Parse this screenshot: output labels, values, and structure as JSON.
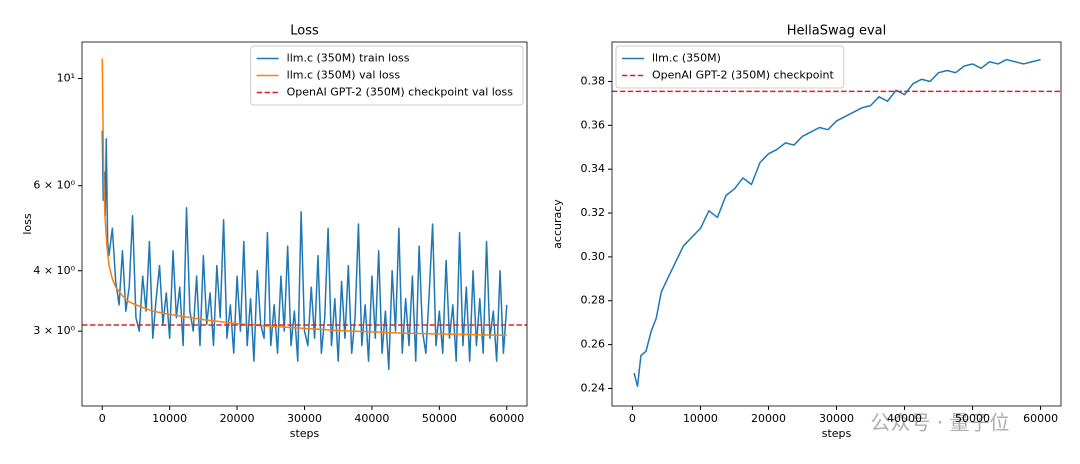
{
  "chart_data": [
    {
      "type": "line",
      "title": "Loss",
      "xlabel": "steps",
      "ylabel": "loss",
      "yscale": "log",
      "xlim": [
        -3000,
        63000
      ],
      "xticks": [
        0,
        10000,
        20000,
        30000,
        40000,
        50000,
        60000
      ],
      "ylim": [
        2.1,
        11.9
      ],
      "yticks": [
        {
          "value": 3,
          "label": "3 × 10⁰"
        },
        {
          "value": 4,
          "label": "4 × 10⁰"
        },
        {
          "value": 6,
          "label": "6 × 10⁰"
        },
        {
          "value": 10,
          "label": "10¹"
        }
      ],
      "legend": "upper right",
      "series": [
        {
          "name": "llm.c (350M) train loss",
          "color": "#1f77b4",
          "x": [
            0,
            150,
            300,
            450,
            600,
            800,
            1000,
            1500,
            2000,
            2500,
            3000,
            3500,
            4000,
            4500,
            5000,
            5500,
            6000,
            6500,
            7000,
            7500,
            8000,
            8500,
            9000,
            9500,
            10000,
            10500,
            11000,
            11500,
            12000,
            12500,
            13000,
            13500,
            14000,
            14500,
            15000,
            15500,
            16000,
            16500,
            17000,
            17500,
            18000,
            18500,
            19000,
            19500,
            20000,
            20500,
            21000,
            21500,
            22000,
            22500,
            23000,
            23500,
            24000,
            24500,
            25000,
            25500,
            26000,
            26500,
            27000,
            27500,
            28000,
            28500,
            29000,
            29500,
            30000,
            30500,
            31000,
            31500,
            32000,
            32500,
            33000,
            33500,
            34000,
            34500,
            35000,
            35500,
            36000,
            36500,
            37000,
            37500,
            38000,
            38500,
            39000,
            39500,
            40000,
            40500,
            41000,
            41500,
            42000,
            42500,
            43000,
            43500,
            44000,
            44500,
            45000,
            45500,
            46000,
            46500,
            47000,
            47500,
            48000,
            48500,
            49000,
            49500,
            50000,
            50500,
            51000,
            51500,
            52000,
            52500,
            53000,
            53500,
            54000,
            54500,
            55000,
            55500,
            56000,
            56500,
            57000,
            57500,
            58000,
            58500,
            59000,
            59500,
            60000
          ],
          "values": [
            7.8,
            5.6,
            6.4,
            5.2,
            7.5,
            4.6,
            4.3,
            4.9,
            3.8,
            3.4,
            4.4,
            3.3,
            3.7,
            5.2,
            3.2,
            3.0,
            3.9,
            3.3,
            4.6,
            2.9,
            3.5,
            4.1,
            3.1,
            3.6,
            2.9,
            4.4,
            3.2,
            3.7,
            2.8,
            5.4,
            3.3,
            3.0,
            3.9,
            2.8,
            4.3,
            3.1,
            3.6,
            2.8,
            4.1,
            3.2,
            5.1,
            2.9,
            3.4,
            2.7,
            3.9,
            3.0,
            4.6,
            2.8,
            3.5,
            2.6,
            4.0,
            3.1,
            2.9,
            4.8,
            2.8,
            3.4,
            2.7,
            3.9,
            3.0,
            4.5,
            2.8,
            3.3,
            2.6,
            5.3,
            3.0,
            2.8,
            3.7,
            2.9,
            4.3,
            2.7,
            3.2,
            4.9,
            2.8,
            3.5,
            2.6,
            3.8,
            2.9,
            4.1,
            2.7,
            3.2,
            5.0,
            2.8,
            3.4,
            2.6,
            3.9,
            2.9,
            4.4,
            2.7,
            3.3,
            2.5,
            4.0,
            3.0,
            4.9,
            2.7,
            3.5,
            2.8,
            3.9,
            2.6,
            4.5,
            3.0,
            2.7,
            3.6,
            5.0,
            2.8,
            3.3,
            2.7,
            4.2,
            2.9,
            3.4,
            2.6,
            4.8,
            2.8,
            3.7,
            2.6,
            4.0,
            2.8,
            3.5,
            2.7,
            4.6,
            2.9,
            3.3,
            2.6,
            4.0,
            2.7,
            3.4
          ]
        },
        {
          "name": "llm.c (350M) val loss",
          "color": "#ff7f0e",
          "x": [
            0,
            100,
            200,
            400,
            700,
            1000,
            1500,
            2000,
            3000,
            4000,
            5000,
            7500,
            10000,
            15000,
            20000,
            25000,
            30000,
            35000,
            40000,
            45000,
            50000,
            55000,
            60000
          ],
          "values": [
            11,
            8.5,
            6.5,
            5.2,
            4.5,
            4.1,
            3.85,
            3.7,
            3.55,
            3.45,
            3.4,
            3.3,
            3.25,
            3.17,
            3.11,
            3.07,
            3.04,
            3.01,
            2.99,
            2.97,
            2.96,
            2.95,
            2.94
          ]
        }
      ],
      "hlines": [
        {
          "name": "OpenAI GPT-2 (350M) checkpoint val loss",
          "color": "#d62728",
          "style": "dashed",
          "value": 3.09
        }
      ]
    },
    {
      "type": "line",
      "title": "HellaSwag eval",
      "xlabel": "steps",
      "ylabel": "accuracy",
      "yscale": "linear",
      "xlim": [
        -3000,
        63000
      ],
      "xticks": [
        0,
        10000,
        20000,
        30000,
        40000,
        50000,
        60000
      ],
      "ylim": [
        0.232,
        0.398
      ],
      "yticks": [
        0.24,
        0.26,
        0.28,
        {
          "value": 0.3,
          "label": "0.30"
        },
        0.32,
        0.34,
        0.36,
        0.38
      ],
      "legend": "upper left",
      "series": [
        {
          "name": "llm.c (350M)",
          "color": "#1f77b4",
          "x": [
            250,
            750,
            1250,
            2000,
            2750,
            3500,
            4250,
            5000,
            6250,
            7500,
            8750,
            10000,
            11250,
            12500,
            13750,
            15000,
            16250,
            17500,
            18750,
            20000,
            21250,
            22500,
            23750,
            25000,
            26250,
            27500,
            28750,
            30000,
            31250,
            32500,
            33750,
            35000,
            36250,
            37500,
            38750,
            40000,
            41250,
            42500,
            43750,
            45000,
            46250,
            47500,
            48750,
            50000,
            51250,
            52500,
            53750,
            55000,
            56250,
            57500,
            58750,
            60000
          ],
          "values": [
            0.247,
            0.241,
            0.255,
            0.257,
            0.266,
            0.272,
            0.284,
            0.289,
            0.297,
            0.305,
            0.309,
            0.313,
            0.321,
            0.318,
            0.328,
            0.331,
            0.336,
            0.333,
            0.343,
            0.347,
            0.349,
            0.352,
            0.351,
            0.355,
            0.357,
            0.359,
            0.358,
            0.362,
            0.364,
            0.366,
            0.368,
            0.369,
            0.373,
            0.371,
            0.376,
            0.374,
            0.379,
            0.381,
            0.38,
            0.384,
            0.385,
            0.384,
            0.387,
            0.388,
            0.386,
            0.389,
            0.388,
            0.39,
            0.389,
            0.388,
            0.389,
            0.39
          ]
        }
      ],
      "hlines": [
        {
          "name": "OpenAI GPT-2 (350M) checkpoint",
          "color": "#d62728",
          "style": "dashed",
          "value": 0.3755
        }
      ]
    }
  ],
  "watermark": "公众号 · 量子位"
}
